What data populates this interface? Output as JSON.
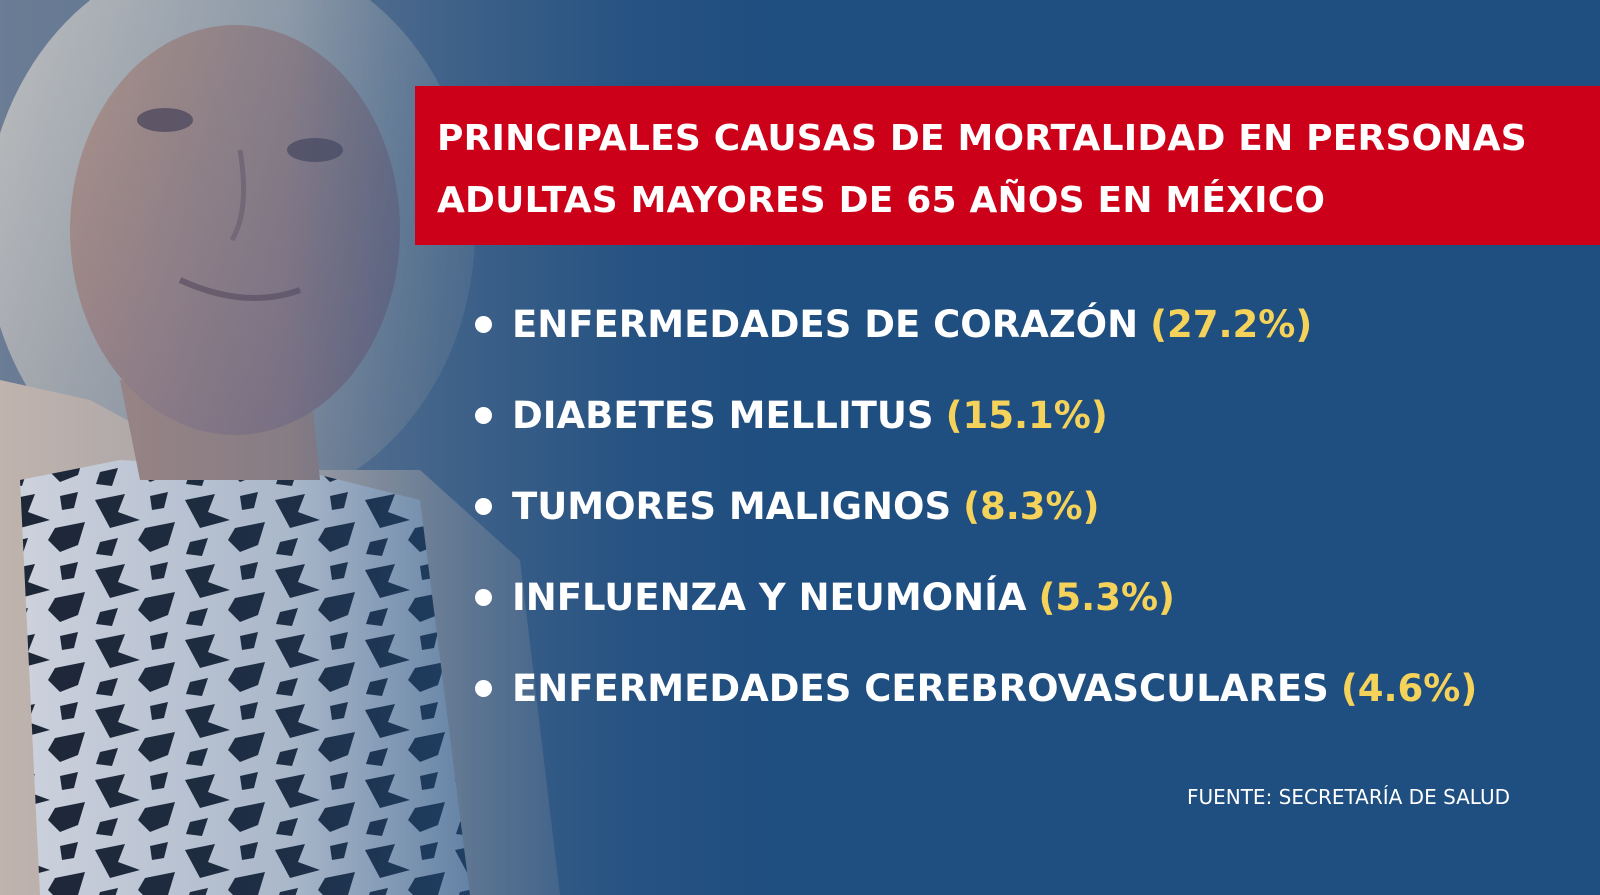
{
  "title": {
    "line1": "PRINCIPALES CAUSAS DE MORTALIDAD EN PERSONAS",
    "line2": "ADULTAS MAYORES DE 65 AÑOS EN MÉXICO"
  },
  "causes": [
    {
      "name": "ENFERMEDADES DE CORAZÓN",
      "percent": "(27.2%)"
    },
    {
      "name": "DIABETES MELLITUS",
      "percent": "(15.1%)"
    },
    {
      "name": "TUMORES MALIGNOS",
      "percent": "(8.3%)"
    },
    {
      "name": "INFLUENZA Y NEUMONÍA",
      "percent": "(5.3%)"
    },
    {
      "name": "ENFERMEDADES CEREBROVASCULARES",
      "percent": "(4.6%)"
    }
  ],
  "source": "FUENTE: SECRETARÍA DE SALUD",
  "colors": {
    "background": "#1f4e80",
    "banner": "#cc0019",
    "highlight": "#f5d25a",
    "text": "#ffffff"
  }
}
